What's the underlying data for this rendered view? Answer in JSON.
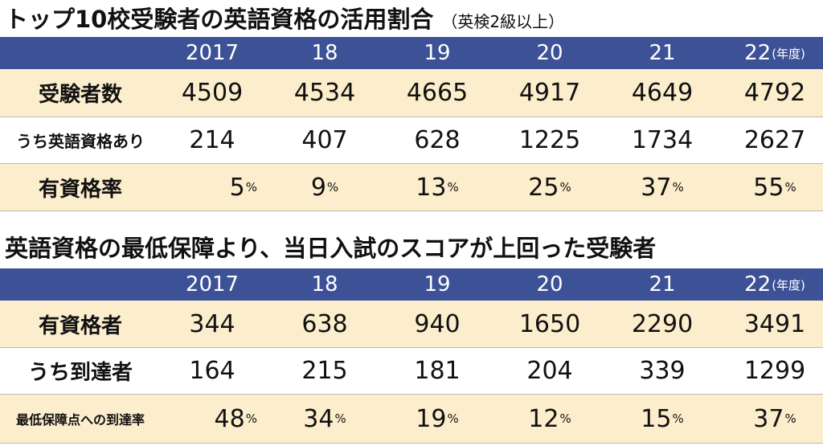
{
  "table1": {
    "title": "トップ10校受験者の英語資格の活用割合",
    "subtitle": "（英検2級以上）",
    "header": {
      "years": [
        "2017",
        "18",
        "19",
        "20",
        "21",
        "22"
      ],
      "unit": "(年度)"
    },
    "rows": [
      {
        "label": "受験者数",
        "values": [
          "4509",
          "4534",
          "4665",
          "4917",
          "4649",
          "4792"
        ]
      },
      {
        "label": "うち英語資格あり",
        "values": [
          "214",
          "407",
          "628",
          "1225",
          "1734",
          "2627"
        ]
      },
      {
        "label": "有資格率",
        "values": [
          "5",
          "9",
          "13",
          "25",
          "37",
          "55"
        ],
        "unit": "%"
      }
    ]
  },
  "table2": {
    "title": "英語資格の最低保障より、当日入試のスコアが上回った受験者",
    "header": {
      "years": [
        "2017",
        "18",
        "19",
        "20",
        "21",
        "22"
      ],
      "unit": "(年度)"
    },
    "rows": [
      {
        "label": "有資格者",
        "values": [
          "344",
          "638",
          "940",
          "1650",
          "2290",
          "3491"
        ]
      },
      {
        "label": "うち到達者",
        "values": [
          "164",
          "215",
          "181",
          "204",
          "339",
          "1299"
        ]
      },
      {
        "label": "最低保障点への到達率",
        "values": [
          "48",
          "34",
          "19",
          "12",
          "15",
          "37"
        ],
        "unit": "%"
      }
    ]
  },
  "colors": {
    "header_bg": "#3d5296",
    "row_cream": "#fcedcd",
    "row_white": "#ffffff"
  }
}
